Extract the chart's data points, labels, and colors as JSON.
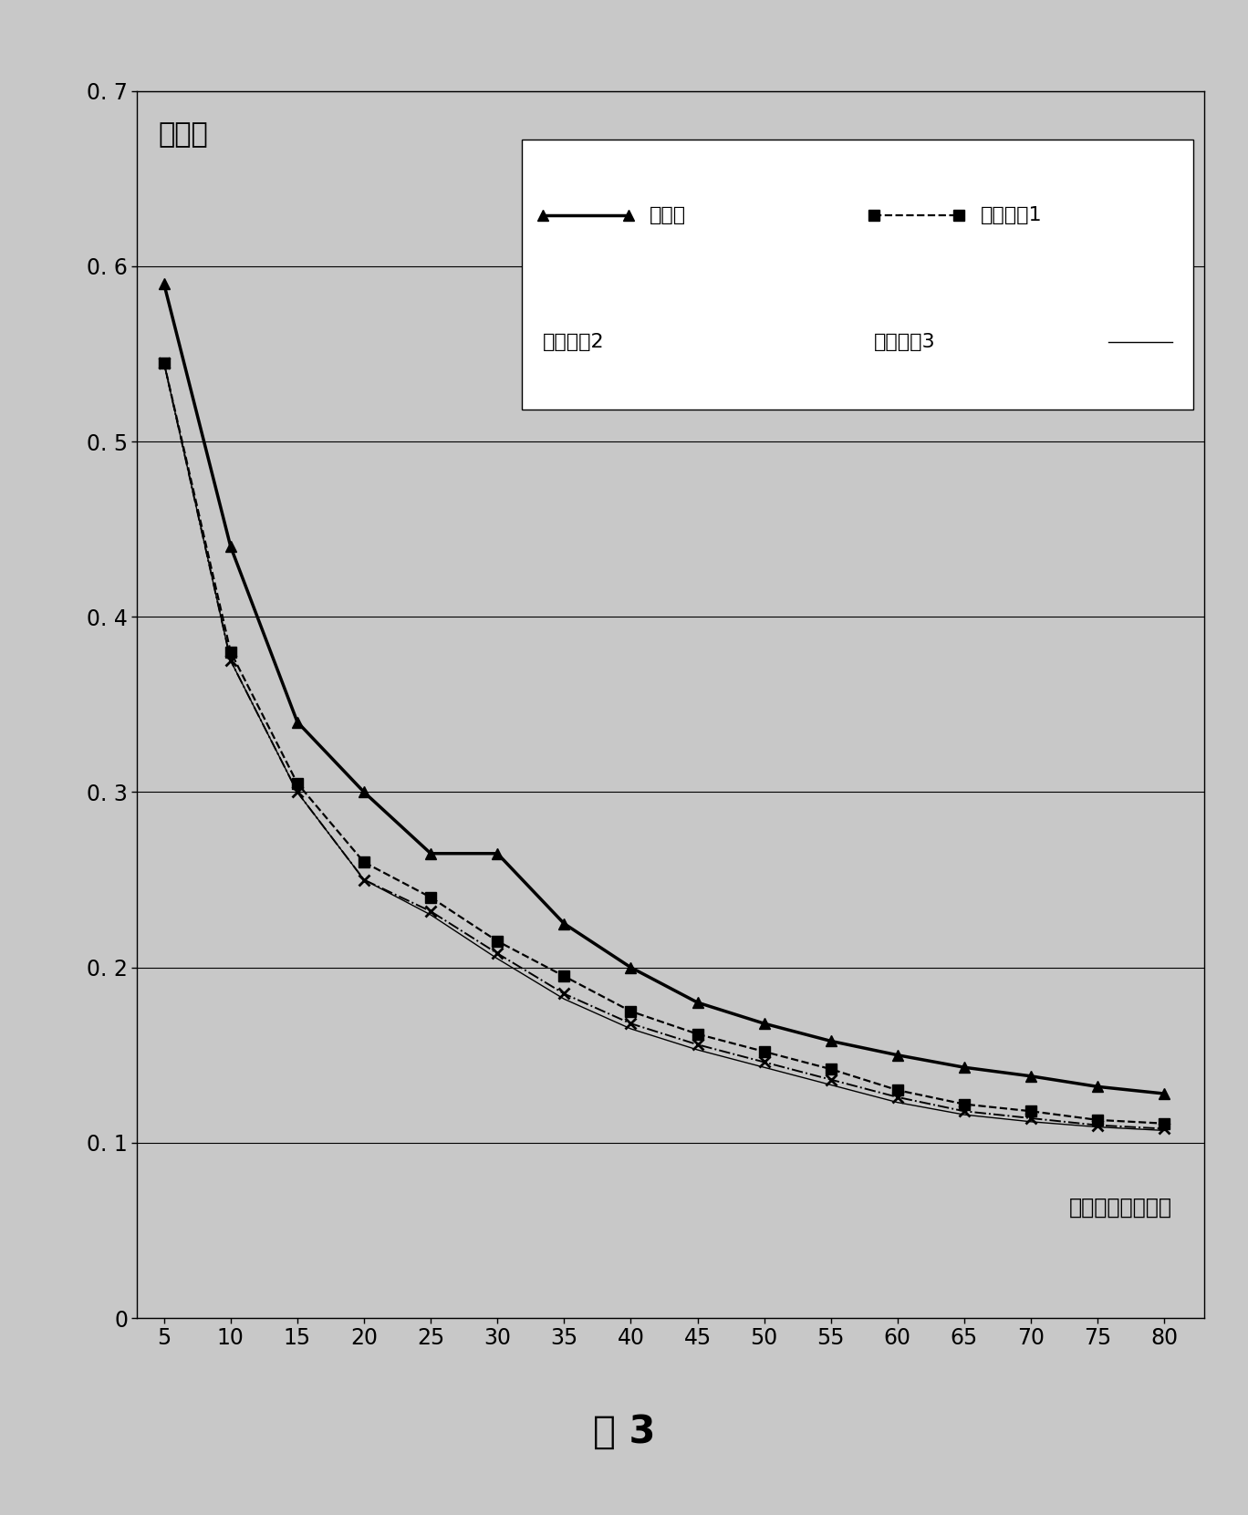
{
  "x": [
    5,
    10,
    15,
    20,
    25,
    30,
    35,
    40,
    45,
    50,
    55,
    60,
    65,
    70,
    75,
    80
  ],
  "series1_name": "本发明",
  "series1_y": [
    0.59,
    0.44,
    0.34,
    0.3,
    0.265,
    0.265,
    0.225,
    0.2,
    0.18,
    0.168,
    0.158,
    0.15,
    0.143,
    0.138,
    0.132,
    0.128
  ],
  "series2_name": "现有方法1",
  "series2_y": [
    0.545,
    0.38,
    0.305,
    0.26,
    0.24,
    0.215,
    0.195,
    0.175,
    0.162,
    0.152,
    0.142,
    0.13,
    0.122,
    0.118,
    0.113,
    0.111
  ],
  "series3_name": "现有方法2",
  "series3_y": [
    0.545,
    0.375,
    0.3,
    0.25,
    0.232,
    0.208,
    0.185,
    0.168,
    0.156,
    0.146,
    0.136,
    0.126,
    0.118,
    0.114,
    0.11,
    0.108
  ],
  "series4_name": "现有方法3",
  "series4_y": [
    0.545,
    0.375,
    0.3,
    0.25,
    0.23,
    0.205,
    0.182,
    0.165,
    0.153,
    0.143,
    0.133,
    0.123,
    0.116,
    0.112,
    0.109,
    0.107
  ],
  "ylabel": "查准率",
  "xlabel_text": "取前面结果的数目",
  "figure_label": "图 3",
  "ylim": [
    0,
    0.7
  ],
  "xlim": [
    3,
    83
  ],
  "yticks": [
    0,
    0.1,
    0.2,
    0.3,
    0.4,
    0.5,
    0.6,
    0.7
  ],
  "xticks": [
    5,
    10,
    15,
    20,
    25,
    30,
    35,
    40,
    45,
    50,
    55,
    60,
    65,
    70,
    75,
    80
  ],
  "bg_color": "#c8c8c8",
  "plot_bg_color": "#c8c8c8"
}
